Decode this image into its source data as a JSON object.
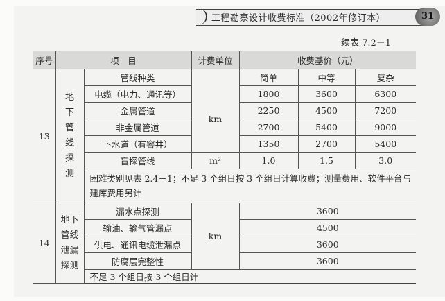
{
  "header": {
    "book_title": "工程勘察设计收费标准（2002年修订本）",
    "page_number": "31"
  },
  "table_caption": "续表 7.2－1",
  "table": {
    "columns": {
      "seq": "序号",
      "item": "项　目",
      "unit": "计费单位",
      "price": "收费基价（元）"
    },
    "group13": {
      "seq": "13",
      "category": "地下管线探测",
      "subheader": {
        "item": "管线种类",
        "levels": [
          "简单",
          "中等",
          "复杂"
        ]
      },
      "rows": [
        {
          "item": "电缆（电力、通讯等）",
          "values": [
            "1800",
            "3600",
            "6300"
          ]
        },
        {
          "item": "金属管道",
          "values": [
            "2250",
            "4500",
            "7200"
          ]
        },
        {
          "item": "非金属管道",
          "values": [
            "2700",
            "5400",
            "9000"
          ]
        },
        {
          "item": "下水道（有窨井）",
          "values": [
            "1350",
            "2700",
            "5400"
          ]
        },
        {
          "item": "盲探管线",
          "unit": "m²",
          "values": [
            "1.0",
            "1.5",
            "3.0"
          ]
        }
      ],
      "unit": "km",
      "note": "困难类别见表 2.4－1；不足 3 个组日按 3 个组日计算收费；测量费用、软件平台与建库费用另计"
    },
    "group14": {
      "seq": "14",
      "category": "地下管线泄漏探测",
      "unit": "km",
      "rows": [
        {
          "item": "漏水点探测",
          "value": "3600"
        },
        {
          "item": "输油、输气管漏点",
          "value": "4500"
        },
        {
          "item": "供电、通讯电缆泄漏点",
          "value": "3600"
        },
        {
          "item": "防腐层完整性",
          "value": "3600"
        }
      ],
      "note": "不足 3 个组日按 3 个组日计"
    }
  }
}
